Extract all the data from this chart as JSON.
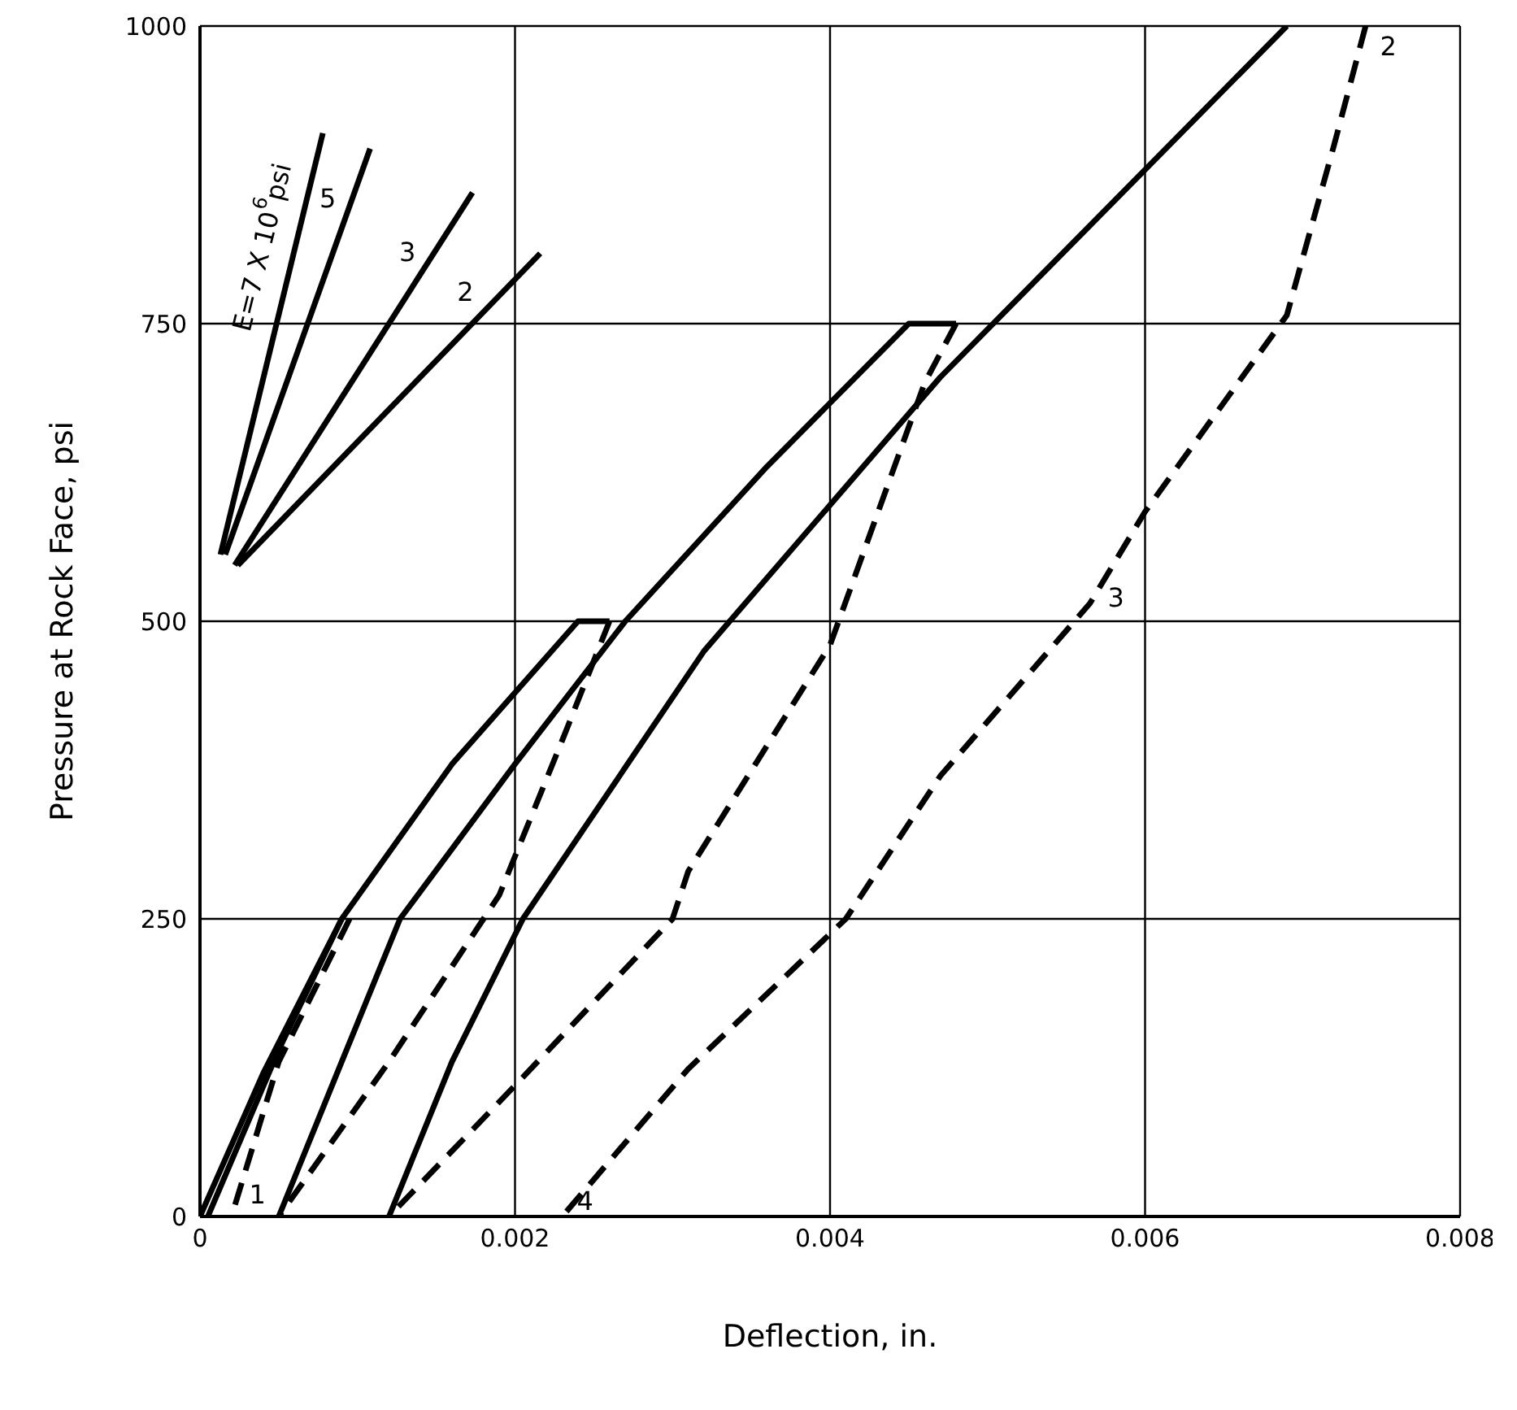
{
  "chart_data": {
    "type": "line",
    "xlabel": "Deflection,  in.",
    "ylabel": "Pressure at Rock Face, psi",
    "xlim": [
      0,
      0.008
    ],
    "xticks": [
      0,
      0.002,
      0.004,
      0.006,
      0.008
    ],
    "ylim": [
      0,
      1000
    ],
    "yticks": [
      0,
      250,
      500,
      750,
      1000
    ],
    "grid": true,
    "marker": "none",
    "line_style": "solid",
    "series": [
      {
        "color": "#000000",
        "x": [
          0,
          0.0004,
          0.0009
        ],
        "values": [
          0,
          120,
          250
        ]
      },
      {
        "color": "#000000",
        "line_style": "dashed",
        "x": [
          0.00095,
          0.0005,
          0.0002
        ],
        "values": [
          250,
          130,
          0
        ]
      },
      {
        "color": "#000000",
        "x": [
          5e-05,
          0.0005,
          0.0009,
          0.0016,
          0.0024,
          0.0026
        ],
        "values": [
          0,
          140,
          250,
          380,
          500,
          500
        ]
      },
      {
        "color": "#000000",
        "line_style": "dashed",
        "x": [
          0.0026,
          0.0023,
          0.0019,
          0.0012,
          0.0005
        ],
        "values": [
          500,
          400,
          270,
          130,
          0
        ]
      },
      {
        "color": "#000000",
        "x": [
          0.0005,
          0.0009,
          0.00127,
          0.002,
          0.0027,
          0.0036,
          0.0045,
          0.0048
        ],
        "values": [
          0,
          130,
          250,
          380,
          500,
          630,
          750,
          750
        ]
      },
      {
        "color": "#000000",
        "line_style": "dashed",
        "x": [
          0.0048,
          0.0046,
          0.004,
          0.0031,
          0.003,
          0.002,
          0.0012
        ],
        "values": [
          750,
          700,
          480,
          290,
          250,
          110,
          0
        ]
      },
      {
        "color": "#000000",
        "x": [
          0.0012,
          0.0016,
          0.00205,
          0.0032,
          0.0047,
          0.0069
        ],
        "values": [
          0,
          130,
          250,
          475,
          705,
          1000
        ]
      },
      {
        "color": "#000000",
        "line_style": "dashed",
        "x": [
          0.0074,
          0.0072,
          0.0069,
          0.006,
          0.00565,
          0.0047,
          0.0041,
          0.0031,
          0.0023
        ],
        "values": [
          1000,
          900,
          757,
          592,
          515,
          370,
          250,
          124,
          0
        ]
      },
      {
        "color": "#000000",
        "x": [
          0.00013,
          0.00078
        ],
        "values": [
          556,
          910
        ]
      },
      {
        "color": "#000000",
        "x": [
          0.00016,
          0.00108
        ],
        "values": [
          556,
          897
        ]
      },
      {
        "color": "#000000",
        "x": [
          0.00022,
          0.00173
        ],
        "values": [
          547,
          860
        ]
      },
      {
        "color": "#000000",
        "x": [
          0.00024,
          0.00216
        ],
        "values": [
          547,
          809
        ]
      }
    ],
    "annotations": [
      {
        "text": "E=7 X 10$^{6}$psi",
        "x": 0.00078,
        "y": 910
      },
      {
        "text": "5",
        "x": 0.00108,
        "y": 897
      },
      {
        "text": "3",
        "x": 0.00173,
        "y": 860
      },
      {
        "text": "2",
        "x": 0.00216,
        "y": 809
      },
      {
        "text": "1",
        "x": 0.0002,
        "y": 0
      },
      {
        "text": "2",
        "x": 0.0074,
        "y": 1000
      },
      {
        "text": "3",
        "x": 0.00565,
        "y": 515
      },
      {
        "text": "4",
        "x": 0.0023,
        "y": 0
      }
    ]
  }
}
